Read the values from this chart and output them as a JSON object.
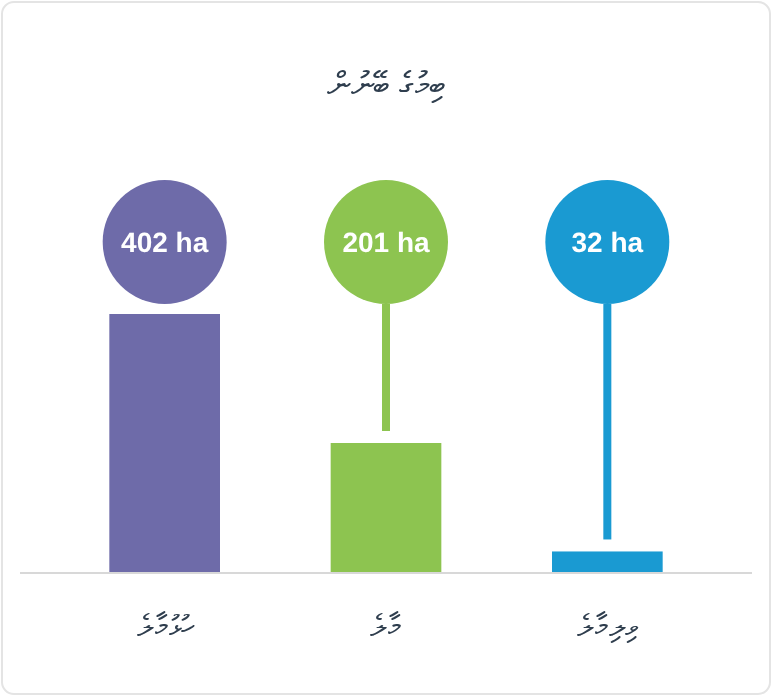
{
  "chart_data": {
    "type": "bar",
    "title": "ބިމުގެ ބޭނުން",
    "categories": [
      "ހުޅުމާލެ",
      "މާލެ",
      "ވިލިމާލެ"
    ],
    "values": [
      402,
      201,
      32
    ],
    "colors": [
      "#6e6ba9",
      "#8dc450",
      "#1a9ad2"
    ],
    "value_labels": [
      "402 ha",
      "201 ha",
      "32 ha"
    ]
  }
}
